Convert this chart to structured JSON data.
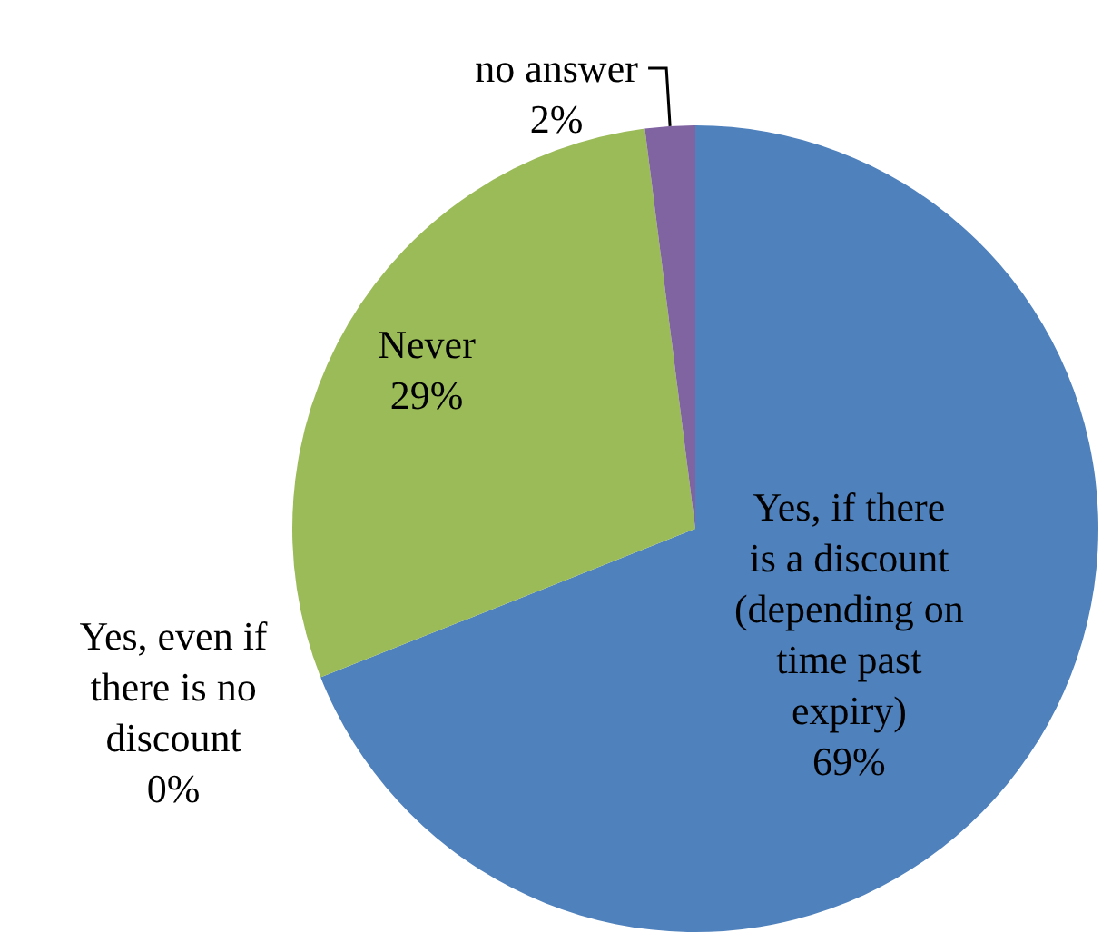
{
  "chart_data": {
    "type": "pie",
    "categories": [
      "Yes, if there is a discount (depending on time past expiry)",
      "Yes, even if there is no discount",
      "Never",
      "no answer"
    ],
    "values": [
      69,
      0,
      29,
      2
    ],
    "colors": [
      "#4f81bd",
      "#c0504d",
      "#9bbb59",
      "#8064a2"
    ],
    "value_labels": [
      "69%",
      "0%",
      "29%",
      "2%"
    ]
  }
}
